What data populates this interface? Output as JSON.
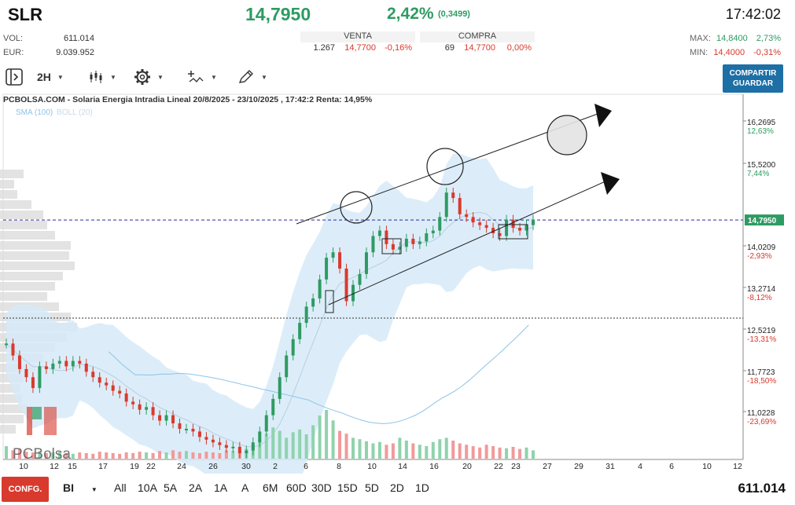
{
  "header": {
    "ticker": "SLR",
    "price": "14,7950",
    "change_pct": "2,42%",
    "change_abs": "(0,3499)",
    "time": "17:42:02",
    "vol_label": "VOL:",
    "vol_value": "611.014",
    "eur_label": "EUR:",
    "eur_value": "9.039.952",
    "sell": {
      "title": "VENTA",
      "qty": "1.267",
      "price": "14,7700",
      "pct": "-0,16%"
    },
    "buy": {
      "title": "COMPRA",
      "qty": "69",
      "price": "14,7700",
      "pct": "0,00%"
    },
    "max_label": "MAX:",
    "max_value": "14,8400",
    "max_pct": "2,73%",
    "min_label": "MIN:",
    "min_value": "14,4000",
    "min_pct": "-0,31%",
    "colors": {
      "up": "#2e9b62",
      "down": "#d83a2d",
      "accent": "#1d6fa5"
    }
  },
  "toolbar": {
    "interval": "2H",
    "share_line1": "COMPARTIR",
    "share_line2": "GUARDAR",
    "icons": [
      "panel-toggle-icon",
      "candles-icon",
      "gear-icon",
      "indicators-icon",
      "draw-pencil-icon"
    ]
  },
  "chart": {
    "title": "PCBOLSA.COM - Solaria Energia Intradia Lineal 20/8/2025 - 23/10/2025 , 17:42:2 Renta: 14,95%",
    "indicator_sma": "SMA (100)",
    "indicator_boll": "BOLL (20)",
    "watermark_logo": "PCBolsa",
    "price_tag": "14,7950"
  },
  "chart_data": {
    "type": "candlestick",
    "y_ticks": [
      {
        "value": "16,2695",
        "pct": "12,63%",
        "positive": true
      },
      {
        "value": "15,5200",
        "pct": "7,44%",
        "positive": true
      },
      {
        "value": "14,0209",
        "pct": "-2,93%",
        "positive": false
      },
      {
        "value": "13,2714",
        "pct": "-8,12%",
        "positive": false
      },
      {
        "value": "12,5219",
        "pct": "-13,31%",
        "positive": false
      },
      {
        "value": "11,7723",
        "pct": "-18,50%",
        "positive": false
      },
      {
        "value": "11,0228",
        "pct": "-23,69%",
        "positive": false
      }
    ],
    "x_ticks": [
      "10",
      "12",
      "15",
      "17",
      "19",
      "22",
      "24",
      "26",
      "30",
      "2",
      "6",
      "8",
      "10",
      "14",
      "16",
      "20",
      "22",
      "23",
      "27",
      "29",
      "31",
      "4",
      "6",
      "10",
      "12"
    ],
    "last_price": 14.795,
    "ylim": [
      10.4,
      16.85
    ],
    "closes": [
      12.52,
      12.3,
      12.05,
      11.9,
      11.7,
      12.1,
      12.05,
      12.15,
      12.2,
      12.1,
      12.2,
      12.15,
      12.0,
      11.9,
      11.8,
      11.75,
      11.65,
      11.6,
      11.45,
      11.4,
      11.3,
      11.35,
      11.2,
      11.1,
      11.2,
      11.05,
      10.95,
      10.95,
      10.9,
      10.8,
      10.75,
      10.7,
      10.65,
      10.6,
      10.62,
      10.5,
      10.55,
      10.7,
      10.9,
      11.2,
      11.5,
      11.9,
      12.3,
      12.6,
      12.9,
      13.2,
      13.35,
      13.7,
      14.1,
      14.2,
      13.9,
      13.3,
      13.6,
      13.8,
      14.2,
      14.5,
      14.6,
      14.35,
      14.25,
      14.3,
      14.45,
      14.35,
      14.4,
      14.55,
      14.6,
      14.85,
      15.3,
      15.2,
      14.9,
      14.85,
      14.75,
      14.7,
      14.65,
      14.55,
      14.5,
      14.8,
      14.65,
      14.6,
      14.7,
      14.8
    ],
    "volume": [
      18,
      12,
      14,
      10,
      9,
      11,
      8,
      9,
      10,
      8,
      7,
      9,
      8,
      7,
      10,
      9,
      8,
      7,
      9,
      8,
      10,
      9,
      8,
      11,
      9,
      12,
      10,
      11,
      9,
      8,
      10,
      9,
      8,
      12,
      11,
      10,
      14,
      20,
      28,
      36,
      45,
      40,
      30,
      38,
      42,
      35,
      48,
      62,
      70,
      55,
      40,
      36,
      30,
      28,
      25,
      22,
      24,
      20,
      22,
      30,
      26,
      22,
      20,
      18,
      24,
      28,
      30,
      26,
      22,
      20,
      18,
      16,
      20,
      18,
      16,
      15,
      17,
      14,
      16,
      12
    ]
  },
  "bottom": {
    "config": "CONFG.",
    "chart_type": "BI",
    "ranges": [
      "All",
      "10A",
      "5A",
      "2A",
      "1A",
      "A",
      "6M",
      "60D",
      "30D",
      "15D",
      "5D",
      "2D",
      "1D"
    ],
    "total_volume": "611.014"
  }
}
